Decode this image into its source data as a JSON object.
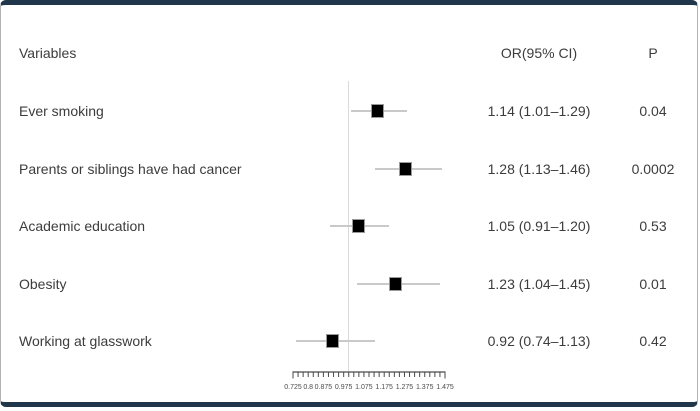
{
  "chart_data": {
    "type": "scatter",
    "subtype": "forest-plot",
    "title": "",
    "columns": [
      "Variables",
      "OR(95% CI)",
      "P"
    ],
    "categories": [
      "Ever smoking",
      "Parents or siblings have had cancer",
      "Academic education",
      "Obesity",
      "Working at glasswork"
    ],
    "series": [
      {
        "name": "OR",
        "values": [
          1.14,
          1.28,
          1.05,
          1.23,
          0.92
        ]
      }
    ],
    "ci_low": [
      1.01,
      1.13,
      0.91,
      1.04,
      0.74
    ],
    "ci_high": [
      1.29,
      1.46,
      1.2,
      1.45,
      1.13
    ],
    "or_ci_labels": [
      "1.14 (1.01–1.29)",
      "1.28 (1.13–1.46)",
      "1.05 (0.91–1.20)",
      "1.23 (1.04–1.45)",
      "0.92 (0.74–1.13)"
    ],
    "p_values": [
      "0.04",
      "0.0002",
      "0.53",
      "0.01",
      "0.42"
    ],
    "xlim": [
      0.725,
      1.475
    ],
    "x_tick_values": [
      0.725,
      0.8,
      0.875,
      0.975,
      1.075,
      1.175,
      1.275,
      1.375,
      1.475
    ],
    "x_tick_labels": [
      "0.725",
      "0.8",
      "0.875",
      "0.975",
      "1.075",
      "1.175",
      "1.275",
      "1.375",
      "1.475"
    ],
    "minor_tick_step": 0.025,
    "reference_line": 1.0,
    "grid": false,
    "legend": "none"
  }
}
